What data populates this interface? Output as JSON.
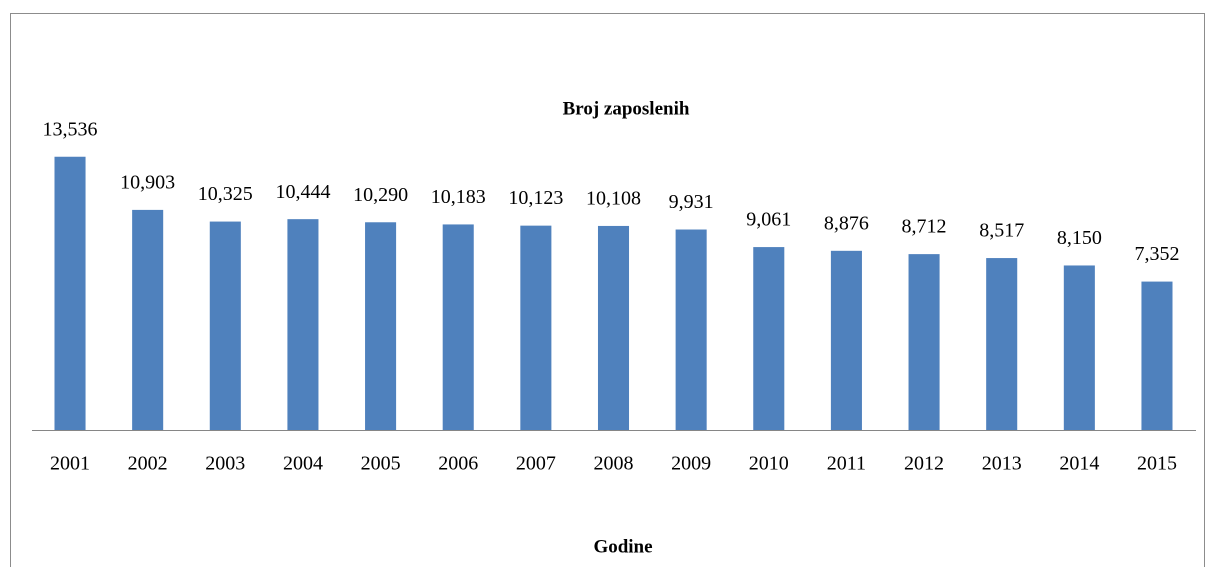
{
  "chart_data": {
    "type": "bar",
    "title": "Broj zaposlenih",
    "x_label": "Godine",
    "categories": [
      "2001",
      "2002",
      "2003",
      "2004",
      "2005",
      "2006",
      "2007",
      "2008",
      "2009",
      "2010",
      "2011",
      "2012",
      "2013",
      "2014",
      "2015"
    ],
    "values": [
      13536,
      10903,
      10325,
      10444,
      10290,
      10183,
      10123,
      10108,
      9931,
      9061,
      8876,
      8712,
      8517,
      8150,
      7352
    ],
    "value_labels": [
      "13,536",
      "10,903",
      "10,325",
      "10,444",
      "10,290",
      "10,183",
      "10,123",
      "10,108",
      "9,931",
      "9,061",
      "8,876",
      "8,712",
      "8,517",
      "8,150",
      "7,352"
    ],
    "color": "#4f81bd",
    "ylim": [
      0,
      16000
    ]
  }
}
